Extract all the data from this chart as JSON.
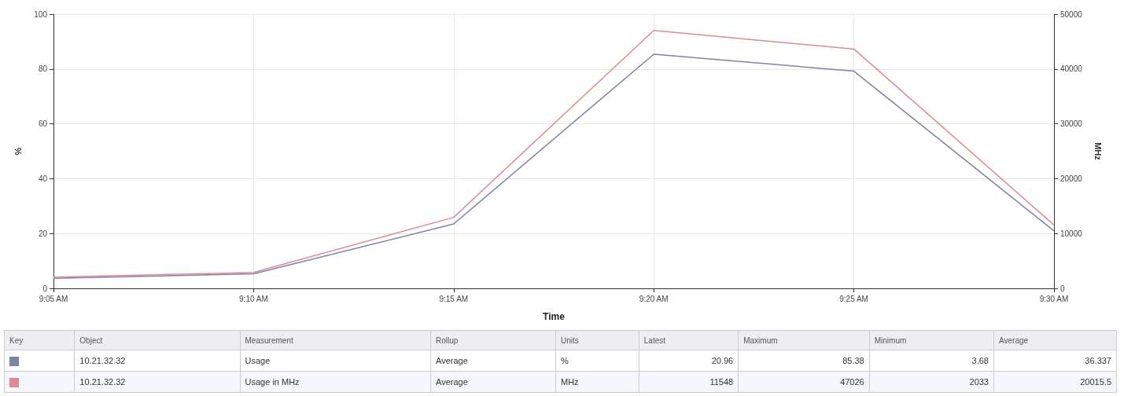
{
  "chart_data": {
    "type": "line",
    "xlabel": "Time",
    "ylabel": "%",
    "y2label": "MHz",
    "categories": [
      "9:05 AM",
      "9:10 AM",
      "9:15 AM",
      "9:20 AM",
      "9:25 AM",
      "9:30 AM"
    ],
    "series": [
      {
        "color": "#7d84a3",
        "values": [
          3.68,
          5.3,
          23.5,
          85.38,
          79.2,
          20.96
        ]
      },
      {
        "color": "#dd8a92",
        "axis": "y2",
        "values": [
          2033,
          2900,
          12950,
          47026,
          43636,
          11548
        ]
      }
    ],
    "ylim": [
      0,
      100
    ],
    "yticks": [
      0,
      20,
      40,
      60,
      80,
      100
    ],
    "y2lim": [
      0,
      50000
    ],
    "y2ticks": [
      0,
      10000,
      20000,
      30000,
      40000,
      50000
    ],
    "grid": true,
    "marker": "none",
    "line_style": "solid",
    "annotations": [
      "Key",
      "Object",
      "Measurement",
      "Rollup",
      "Units",
      "Latest",
      "Maximum",
      "Minimum",
      "Average",
      "10.21.32.32",
      "Usage",
      "Average",
      "%",
      "20.96",
      "85.38",
      "3.68",
      "36.337",
      "10.21.32.32",
      "Usage in MHz",
      "Average",
      "MHz",
      "11548",
      "47026",
      "2033",
      "20015.5"
    ]
  }
}
